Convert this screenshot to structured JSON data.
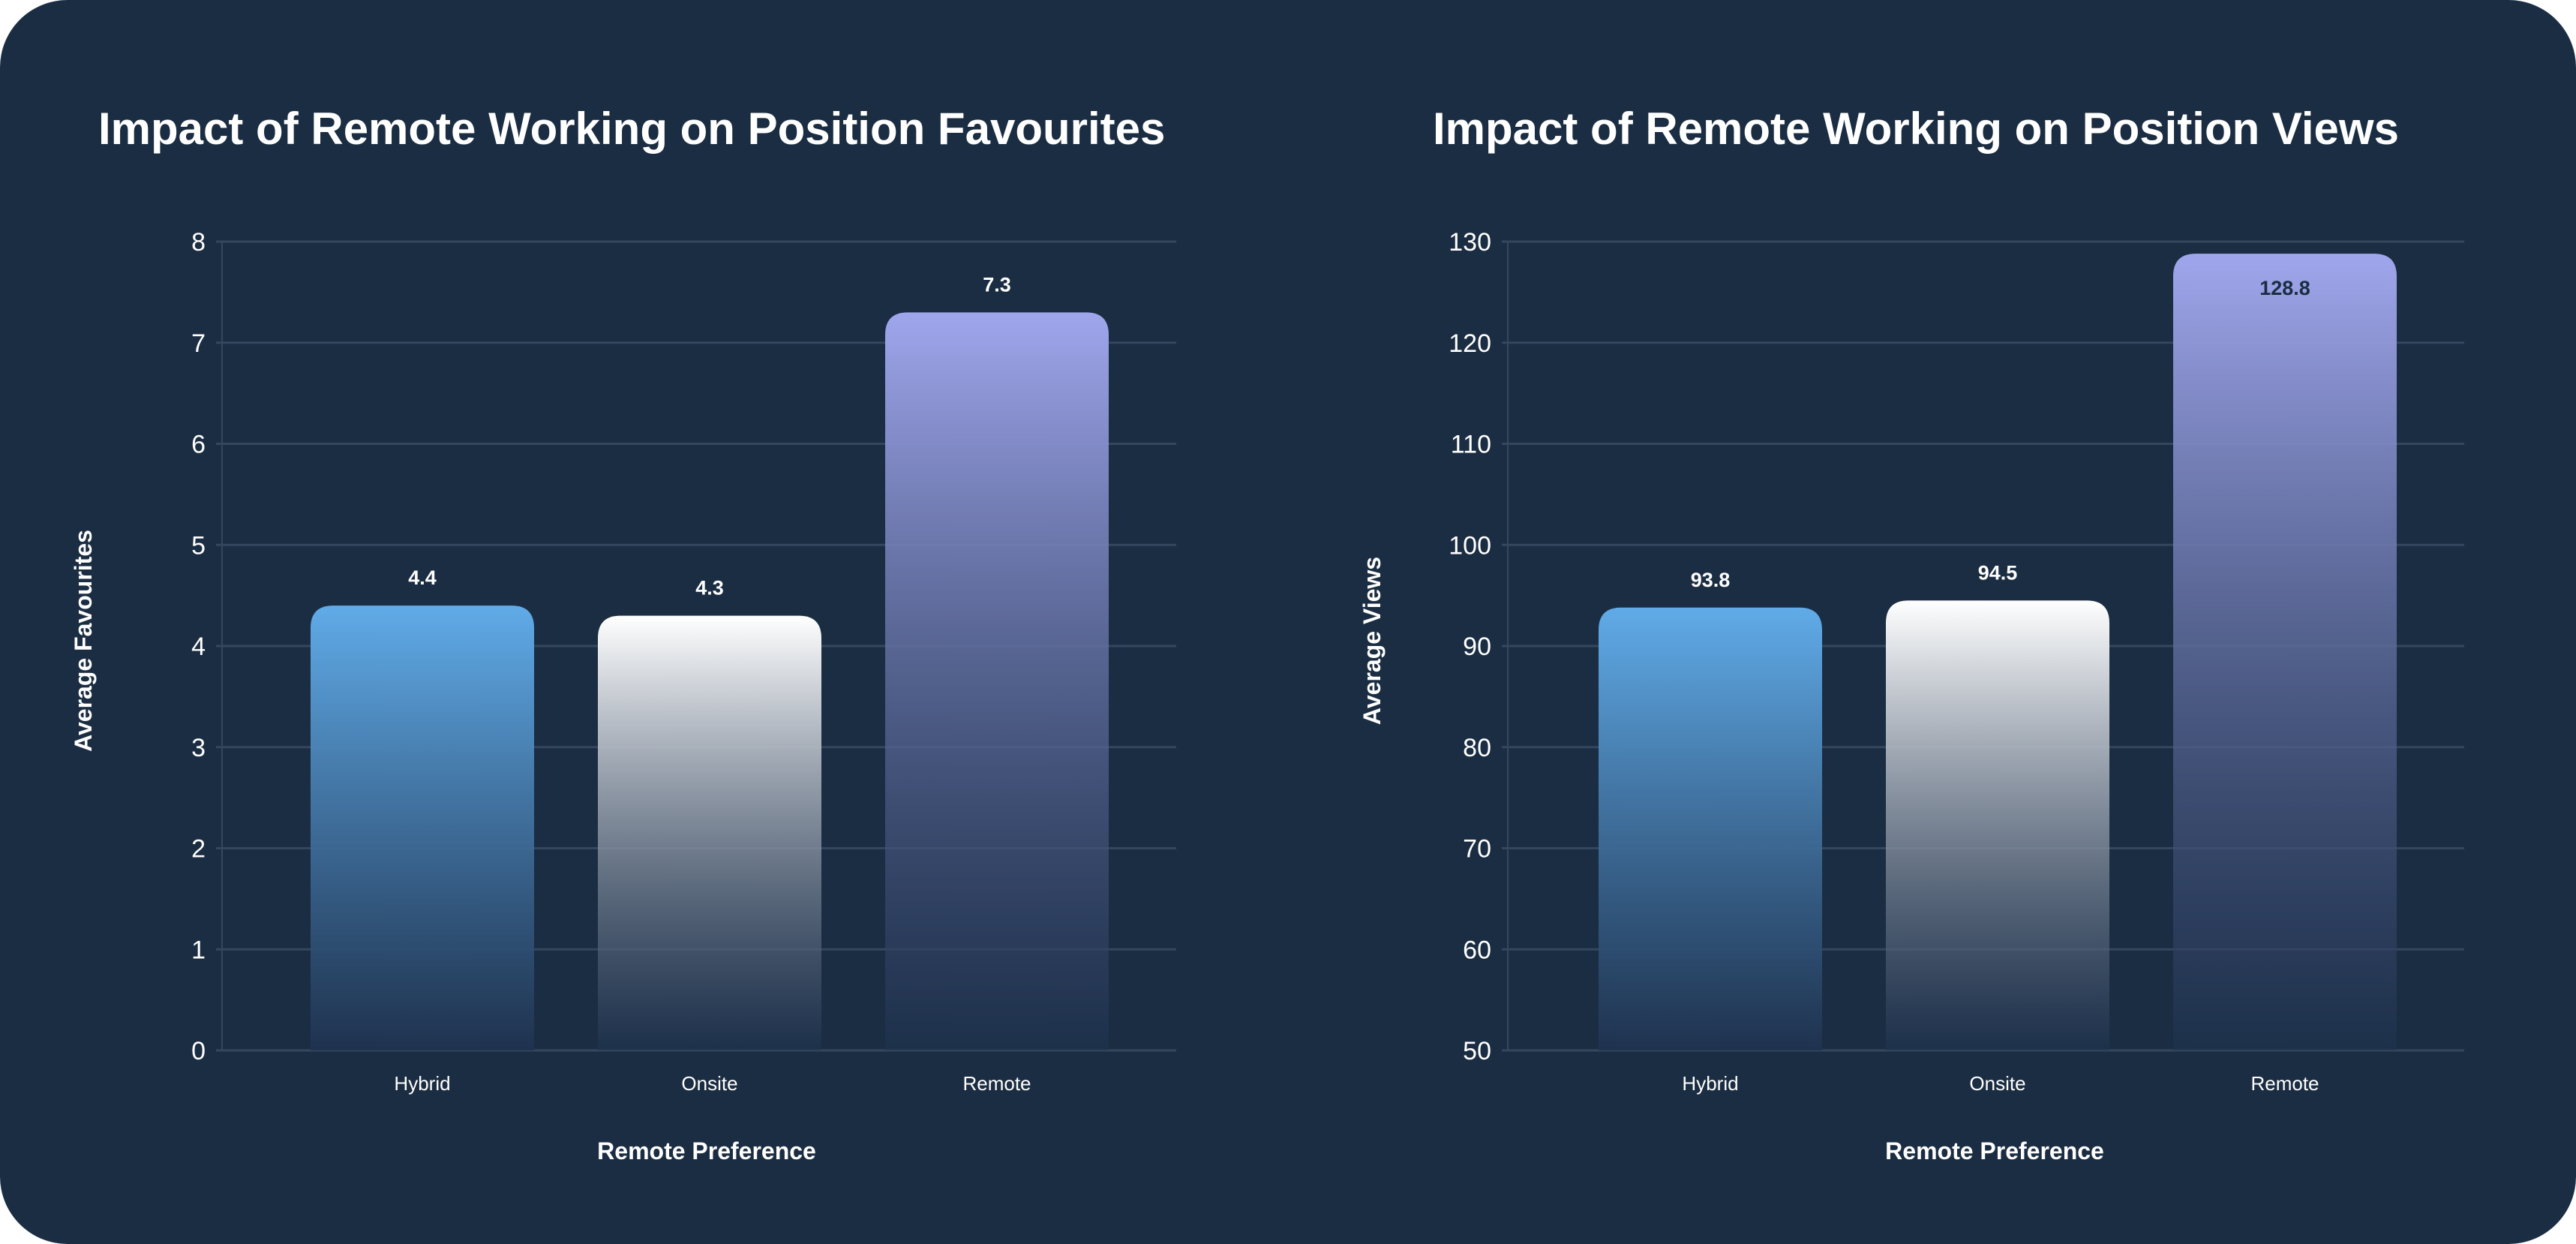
{
  "chart_data": [
    {
      "type": "bar",
      "title": "Impact of Remote Working on Position Favourites",
      "xlabel": "Remote Preference",
      "ylabel": "Average Favourites",
      "categories": [
        "Hybrid",
        "Onsite",
        "Remote"
      ],
      "values": [
        4.4,
        4.3,
        7.3
      ],
      "value_labels": [
        "4.4",
        "4.3",
        "7.3"
      ],
      "ylim": [
        0,
        8
      ],
      "yticks": [
        0,
        1,
        2,
        3,
        4,
        5,
        6,
        7,
        8
      ],
      "grid": true
    },
    {
      "type": "bar",
      "title": "Impact of Remote Working on Position Views",
      "xlabel": "Remote Preference",
      "ylabel": "Average Views",
      "categories": [
        "Hybrid",
        "Onsite",
        "Remote"
      ],
      "values": [
        93.8,
        94.5,
        128.8
      ],
      "value_labels": [
        "93.8",
        "94.5",
        "128.8"
      ],
      "ylim": [
        50,
        130
      ],
      "yticks": [
        50,
        60,
        70,
        80,
        90,
        100,
        110,
        120,
        130
      ],
      "grid": true
    }
  ],
  "colors": {
    "background": "#1b2d42",
    "grid": "#34475e",
    "hybrid_top": "#60abe8",
    "onsite_top": "#ffffff",
    "remote_top": "#a0a6ec",
    "bar_bottom": "#1f3350",
    "text": "#ffffff",
    "inner_label": "#1b2d42"
  }
}
